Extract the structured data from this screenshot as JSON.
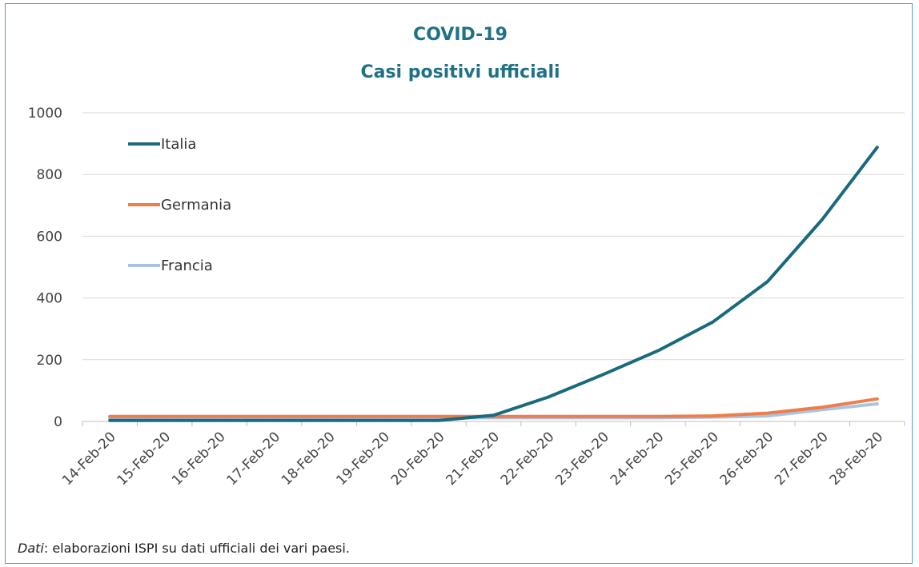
{
  "chart_data": {
    "type": "line",
    "title": "COVID-19",
    "subtitle": "Casi positivi ufficiali",
    "categories": [
      "14-Feb-20",
      "15-Feb-20",
      "16-Feb-20",
      "17-Feb-20",
      "18-Feb-20",
      "19-Feb-20",
      "20-Feb-20",
      "21-Feb-20",
      "22-Feb-20",
      "23-Feb-20",
      "24-Feb-20",
      "25-Feb-20",
      "26-Feb-20",
      "27-Feb-20",
      "28-Feb-20"
    ],
    "ylim": [
      0,
      1000
    ],
    "yticks": [
      0,
      200,
      400,
      600,
      800,
      1000
    ],
    "grid": true,
    "legend_position": "top-left",
    "series": [
      {
        "name": "Italia",
        "color": "#1a6a7d",
        "values": [
          3,
          3,
          3,
          3,
          3,
          3,
          3,
          20,
          79,
          152,
          229,
          322,
          453,
          655,
          888
        ]
      },
      {
        "name": "Germania",
        "color": "#ed7d4a",
        "values": [
          16,
          16,
          16,
          16,
          16,
          16,
          16,
          16,
          16,
          16,
          16,
          18,
          27,
          46,
          73
        ]
      },
      {
        "name": "Francia",
        "color": "#a9c4e3",
        "values": [
          11,
          11,
          11,
          12,
          12,
          12,
          12,
          12,
          12,
          12,
          12,
          14,
          18,
          38,
          57
        ]
      }
    ]
  },
  "footer": {
    "source_label": "Dati",
    "source_text": ": elaborazioni ISPI su dati ufficiali dei vari paesi."
  }
}
